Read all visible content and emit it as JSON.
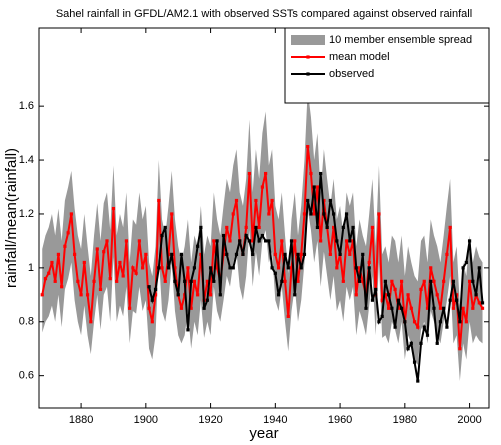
{
  "chart_data": {
    "type": "line",
    "title": "Sahel rainfall in GFDL/AM2.1 with observed SSTs compared against observed rainfall",
    "x_label": "year",
    "y_label": "rainfall/mean(rainfall)",
    "x": [
      1868,
      1869,
      1870,
      1871,
      1872,
      1873,
      1874,
      1875,
      1876,
      1877,
      1878,
      1879,
      1880,
      1881,
      1882,
      1883,
      1884,
      1885,
      1886,
      1887,
      1888,
      1889,
      1890,
      1891,
      1892,
      1893,
      1894,
      1895,
      1896,
      1897,
      1898,
      1899,
      1900,
      1901,
      1902,
      1903,
      1904,
      1905,
      1906,
      1907,
      1908,
      1909,
      1910,
      1911,
      1912,
      1913,
      1914,
      1915,
      1916,
      1917,
      1918,
      1919,
      1920,
      1921,
      1922,
      1923,
      1924,
      1925,
      1926,
      1927,
      1928,
      1929,
      1930,
      1931,
      1932,
      1933,
      1934,
      1935,
      1936,
      1937,
      1938,
      1939,
      1940,
      1941,
      1942,
      1943,
      1944,
      1945,
      1946,
      1947,
      1948,
      1949,
      1950,
      1951,
      1952,
      1953,
      1954,
      1955,
      1956,
      1957,
      1958,
      1959,
      1960,
      1961,
      1962,
      1963,
      1964,
      1965,
      1966,
      1967,
      1968,
      1969,
      1970,
      1971,
      1972,
      1973,
      1974,
      1975,
      1976,
      1977,
      1978,
      1979,
      1980,
      1981,
      1982,
      1983,
      1984,
      1985,
      1986,
      1987,
      1988,
      1989,
      1990,
      1991,
      1992,
      1993,
      1994,
      1995,
      1996,
      1997,
      1998,
      1999,
      2000,
      2001,
      2002,
      2003,
      2004
    ],
    "series": [
      {
        "name": "10 member ensemble spread",
        "color": "#999999",
        "low": [
          0.76,
          0.8,
          0.82,
          0.86,
          0.8,
          0.9,
          0.78,
          0.92,
          0.96,
          1.02,
          0.88,
          0.8,
          0.75,
          0.86,
          0.75,
          0.68,
          0.8,
          0.9,
          0.77,
          0.9,
          0.93,
          0.8,
          1.04,
          0.8,
          0.86,
          0.82,
          0.93,
          0.72,
          0.84,
          0.83,
          0.93,
          0.84,
          0.88,
          0.7,
          0.66,
          0.75,
          1.05,
          0.84,
          0.8,
          0.88,
          1.02,
          0.84,
          0.75,
          0.72,
          0.75,
          0.84,
          0.7,
          0.8,
          0.75,
          0.88,
          0.74,
          0.8,
          0.75,
          0.93,
          0.84,
          0.8,
          0.88,
          0.97,
          0.93,
          1.02,
          1.06,
          0.93,
          0.88,
          0.97,
          1.14,
          0.93,
          1.06,
          0.97,
          1.1,
          1.14,
          1.02,
          1.06,
          0.88,
          0.84,
          0.93,
          0.8,
          0.69,
          0.84,
          0.93,
          0.8,
          0.88,
          1.02,
          1.22,
          1.14,
          1.02,
          1.1,
          0.93,
          1.06,
          0.97,
          0.88,
          0.97,
          0.84,
          0.88,
          0.8,
          0.93,
          0.88,
          0.93,
          0.75,
          0.84,
          0.8,
          0.75,
          0.86,
          0.97,
          0.75,
          1.02,
          0.74,
          0.75,
          0.72,
          0.8,
          0.77,
          0.72,
          0.8,
          0.66,
          0.75,
          0.72,
          0.66,
          0.64,
          0.77,
          0.8,
          0.72,
          0.84,
          0.8,
          0.75,
          0.72,
          0.8,
          0.88,
          0.97,
          0.72,
          0.75,
          0.58,
          0.72,
          0.66,
          0.8,
          0.72,
          0.75,
          0.73,
          0.72
        ],
        "high": [
          1.07,
          1.12,
          1.15,
          1.2,
          1.12,
          1.22,
          1.1,
          1.25,
          1.3,
          1.36,
          1.22,
          1.12,
          1.07,
          1.2,
          1.08,
          0.97,
          1.12,
          1.24,
          1.1,
          1.24,
          1.28,
          1.14,
          1.38,
          1.12,
          1.2,
          1.15,
          1.28,
          1.02,
          1.18,
          1.16,
          1.28,
          1.18,
          1.23,
          1.02,
          0.97,
          1.08,
          1.4,
          1.18,
          1.12,
          1.23,
          1.36,
          1.18,
          1.08,
          1.02,
          1.08,
          1.18,
          1.02,
          1.12,
          1.08,
          1.23,
          1.05,
          1.12,
          1.08,
          1.28,
          1.18,
          1.12,
          1.23,
          1.33,
          1.28,
          1.38,
          1.44,
          1.28,
          1.23,
          1.33,
          1.55,
          1.28,
          1.44,
          1.33,
          1.5,
          1.58,
          1.38,
          1.44,
          1.23,
          1.18,
          1.28,
          1.12,
          0.98,
          1.18,
          1.28,
          1.12,
          1.23,
          1.4,
          1.66,
          1.56,
          1.4,
          1.5,
          1.28,
          1.44,
          1.33,
          1.23,
          1.33,
          1.18,
          1.23,
          1.12,
          1.28,
          1.23,
          1.28,
          1.08,
          1.18,
          1.12,
          1.08,
          1.2,
          1.33,
          1.08,
          1.38,
          1.05,
          1.08,
          1.02,
          1.12,
          1.1,
          1.02,
          1.12,
          0.97,
          1.08,
          1.02,
          0.97,
          0.95,
          1.1,
          1.12,
          1.02,
          1.18,
          1.12,
          1.08,
          1.02,
          1.12,
          1.23,
          1.33,
          1.02,
          1.08,
          0.86,
          1.02,
          0.97,
          1.12,
          1.02,
          1.08,
          1.04,
          1.02
        ]
      },
      {
        "name": "mean model",
        "color": "#ff0000",
        "values": [
          0.9,
          0.96,
          0.98,
          1.02,
          0.95,
          1.05,
          0.93,
          1.08,
          1.13,
          1.2,
          1.05,
          0.95,
          0.9,
          1.02,
          0.9,
          0.8,
          0.95,
          1.07,
          0.92,
          1.06,
          1.1,
          0.96,
          1.22,
          0.95,
          1.02,
          0.97,
          1.1,
          0.85,
          1.0,
          0.98,
          1.1,
          1.0,
          1.05,
          0.85,
          0.8,
          0.9,
          1.25,
          1.0,
          0.95,
          1.05,
          1.2,
          1.0,
          0.9,
          0.85,
          0.9,
          1.0,
          0.85,
          0.95,
          0.9,
          1.05,
          0.88,
          0.95,
          0.9,
          1.1,
          1.0,
          0.95,
          1.05,
          1.15,
          1.1,
          1.2,
          1.25,
          1.1,
          1.05,
          1.15,
          1.35,
          1.1,
          1.25,
          1.15,
          1.3,
          1.35,
          1.2,
          1.25,
          1.05,
          1.0,
          1.1,
          0.95,
          0.82,
          1.0,
          1.1,
          0.95,
          1.05,
          1.2,
          1.45,
          1.35,
          1.2,
          1.3,
          1.1,
          1.25,
          1.15,
          1.05,
          1.15,
          1.0,
          1.05,
          0.95,
          1.1,
          1.05,
          1.1,
          0.9,
          1.0,
          0.95,
          0.9,
          1.02,
          1.15,
          0.9,
          1.2,
          0.88,
          0.9,
          0.85,
          0.95,
          0.92,
          0.85,
          0.95,
          0.8,
          0.9,
          0.85,
          0.8,
          0.78,
          0.92,
          0.95,
          0.85,
          1.0,
          0.95,
          0.9,
          0.85,
          0.95,
          1.05,
          1.15,
          0.85,
          0.9,
          0.7,
          0.85,
          0.8,
          0.95,
          0.85,
          0.9,
          0.87,
          0.85
        ]
      },
      {
        "name": "observed",
        "color": "#000000",
        "values": [
          null,
          null,
          null,
          null,
          null,
          null,
          null,
          null,
          null,
          null,
          null,
          null,
          null,
          null,
          null,
          null,
          null,
          null,
          null,
          null,
          null,
          null,
          null,
          null,
          null,
          null,
          null,
          null,
          null,
          null,
          null,
          null,
          null,
          0.93,
          0.88,
          0.92,
          1.0,
          1.12,
          1.15,
          1.0,
          1.05,
          0.95,
          0.9,
          1.05,
          0.95,
          0.77,
          0.95,
          1.0,
          1.08,
          1.15,
          0.85,
          0.88,
          1.0,
          0.95,
          1.1,
          0.9,
          1.12,
          1.05,
          1.0,
          1.0,
          1.05,
          1.1,
          1.05,
          1.12,
          1.1,
          1.05,
          1.15,
          1.1,
          1.12,
          1.1,
          1.1,
          1.0,
          0.98,
          0.9,
          0.95,
          1.05,
          1.0,
          1.1,
          0.9,
          1.05,
          1.0,
          1.05,
          1.25,
          1.2,
          1.3,
          1.15,
          1.35,
          1.2,
          1.15,
          1.25,
          1.2,
          1.1,
          1.05,
          1.15,
          1.2,
          1.1,
          1.15,
          1.0,
          0.95,
          1.05,
          0.85,
          1.0,
          0.88,
          0.92,
          0.8,
          0.82,
          0.95,
          0.9,
          0.85,
          0.78,
          0.88,
          0.85,
          0.8,
          0.7,
          0.72,
          0.65,
          0.58,
          0.72,
          0.78,
          0.75,
          0.95,
          0.85,
          0.72,
          0.8,
          0.85,
          0.78,
          0.88,
          0.95,
          0.88,
          0.8,
          1.0,
          1.02,
          1.1,
          0.95,
          0.9,
          1.0,
          0.87
        ]
      }
    ],
    "xlim": [
      1867,
      2006
    ],
    "ylim": [
      0.48,
      1.89
    ],
    "xticks": [
      1880,
      1900,
      1920,
      1940,
      1960,
      1980,
      2000
    ],
    "yticks": [
      0.6,
      0.8,
      1,
      1.2,
      1.4,
      1.6
    ],
    "legend": "upper right"
  }
}
